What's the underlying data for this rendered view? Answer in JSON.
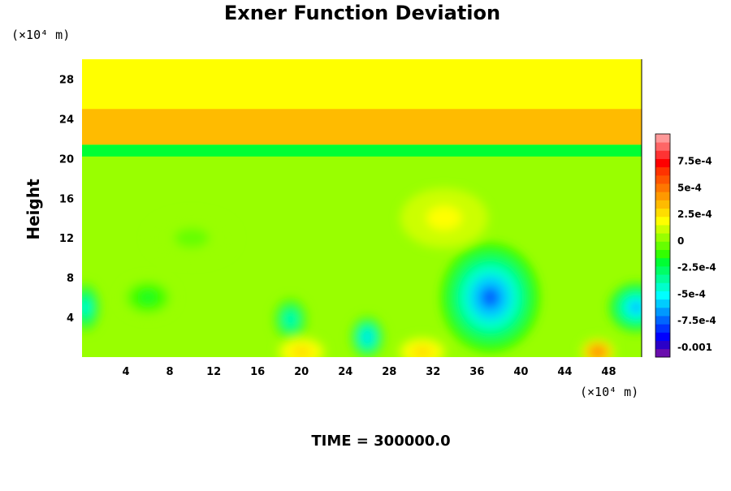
{
  "chart_data": {
    "type": "heatmap",
    "title": "Exner Function Deviation",
    "ylabel": "Height",
    "x_unit": "(×10⁴ m)",
    "y_unit": "(×10⁴ m)",
    "time_label": "TIME = 300000.0",
    "xlim": [
      0,
      51
    ],
    "ylim": [
      0,
      30
    ],
    "x_ticks": [
      4,
      8,
      12,
      16,
      20,
      24,
      28,
      32,
      36,
      40,
      44,
      48
    ],
    "y_ticks": [
      4,
      8,
      12,
      16,
      20,
      24,
      28
    ],
    "x_tick_labels": [
      "4",
      "8",
      "12",
      "16",
      "20",
      "24",
      "28",
      "32",
      "36",
      "40",
      "44",
      "48"
    ],
    "y_tick_labels": [
      "4",
      "8",
      "12",
      "16",
      "20",
      "24",
      "28"
    ],
    "background_value": 0.0002,
    "bands": [
      {
        "y0": 0,
        "y1": 20.2,
        "value": 5e-05
      },
      {
        "y0": 20.2,
        "y1": 21.4,
        "value": -0.0002
      },
      {
        "y0": 21.4,
        "y1": 25,
        "value": 0.00035
      },
      {
        "y0": 25,
        "y1": 30,
        "value": 0.0002
      }
    ],
    "features": [
      {
        "x": 37.2,
        "y": 6,
        "rx": 4.5,
        "ry": 5.5,
        "value": -0.00075
      },
      {
        "x": 26,
        "y": 2,
        "rx": 1.6,
        "ry": 2.2,
        "value": -0.0006
      },
      {
        "x": 19,
        "y": 3.8,
        "rx": 1.6,
        "ry": 2.2,
        "value": -0.00045
      },
      {
        "x": 50.5,
        "y": 5,
        "rx": 2.5,
        "ry": 2.5,
        "value": -0.0007
      },
      {
        "x": 0.3,
        "y": 5,
        "rx": 1.4,
        "ry": 2.5,
        "value": -0.0005
      },
      {
        "x": 6,
        "y": 6,
        "rx": 2.5,
        "ry": 2,
        "value": -0.0002
      },
      {
        "x": 20,
        "y": 0.5,
        "rx": 2.2,
        "ry": 1.5,
        "value": 0.0003
      },
      {
        "x": 31,
        "y": 0.5,
        "rx": 2.2,
        "ry": 1.5,
        "value": 0.0003
      },
      {
        "x": 47,
        "y": 0.5,
        "rx": 1.6,
        "ry": 1.4,
        "value": 0.0005
      },
      {
        "x": 33,
        "y": 14,
        "rx": 4,
        "ry": 3,
        "value": 0.0002
      },
      {
        "x": 10,
        "y": 12,
        "rx": 4,
        "ry": 2.5,
        "value": -5e-05
      }
    ],
    "colorbar": {
      "min": -0.0011,
      "max": 0.001,
      "levels": 27,
      "tick_values": [
        0.00075,
        0.0005,
        0.00025,
        0,
        -0.00025,
        -0.0005,
        -0.00075,
        -0.001
      ],
      "tick_labels": [
        "7.5e-4",
        "5e-4",
        "2.5e-4",
        "0",
        "-2.5e-4",
        "-5e-4",
        "-7.5e-4",
        "-0.001"
      ],
      "colors": [
        "#6a0dad",
        "#2a00c8",
        "#0000ff",
        "#0033ff",
        "#0066ff",
        "#0099ff",
        "#00ccff",
        "#00ffff",
        "#00ffcc",
        "#00ff99",
        "#00ff66",
        "#00ff33",
        "#33ff00",
        "#66ff00",
        "#99ff00",
        "#ccff00",
        "#ffff00",
        "#ffdd00",
        "#ffbb00",
        "#ff9900",
        "#ff7700",
        "#ff5500",
        "#ff3300",
        "#ff0000",
        "#ff3333",
        "#ff6666",
        "#ff9999"
      ]
    }
  }
}
